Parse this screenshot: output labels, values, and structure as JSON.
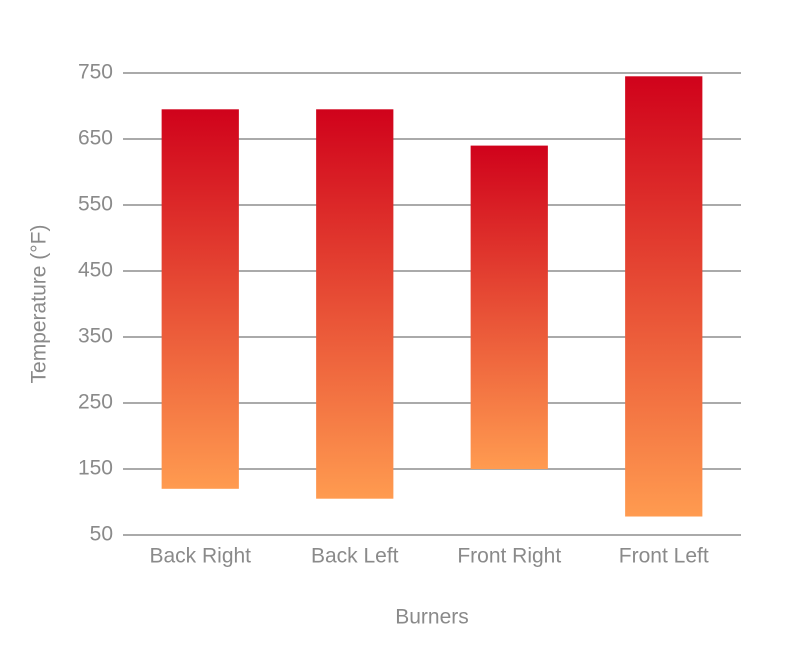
{
  "chart_data": {
    "type": "floating-bar",
    "categories": [
      "Back Right",
      "Back Left",
      "Front Right",
      "Front Left"
    ],
    "low": [
      120,
      105,
      150,
      78
    ],
    "high": [
      695,
      695,
      640,
      745
    ],
    "color_top": "#d0021b",
    "color_bottom": "#ff9b50",
    "xlabel": "Burners",
    "ylabel": "Temperature (°F)",
    "ylim": [
      50,
      750
    ],
    "yticks": [
      50,
      150,
      250,
      350,
      450,
      550,
      650,
      750
    ],
    "grid": true
  }
}
